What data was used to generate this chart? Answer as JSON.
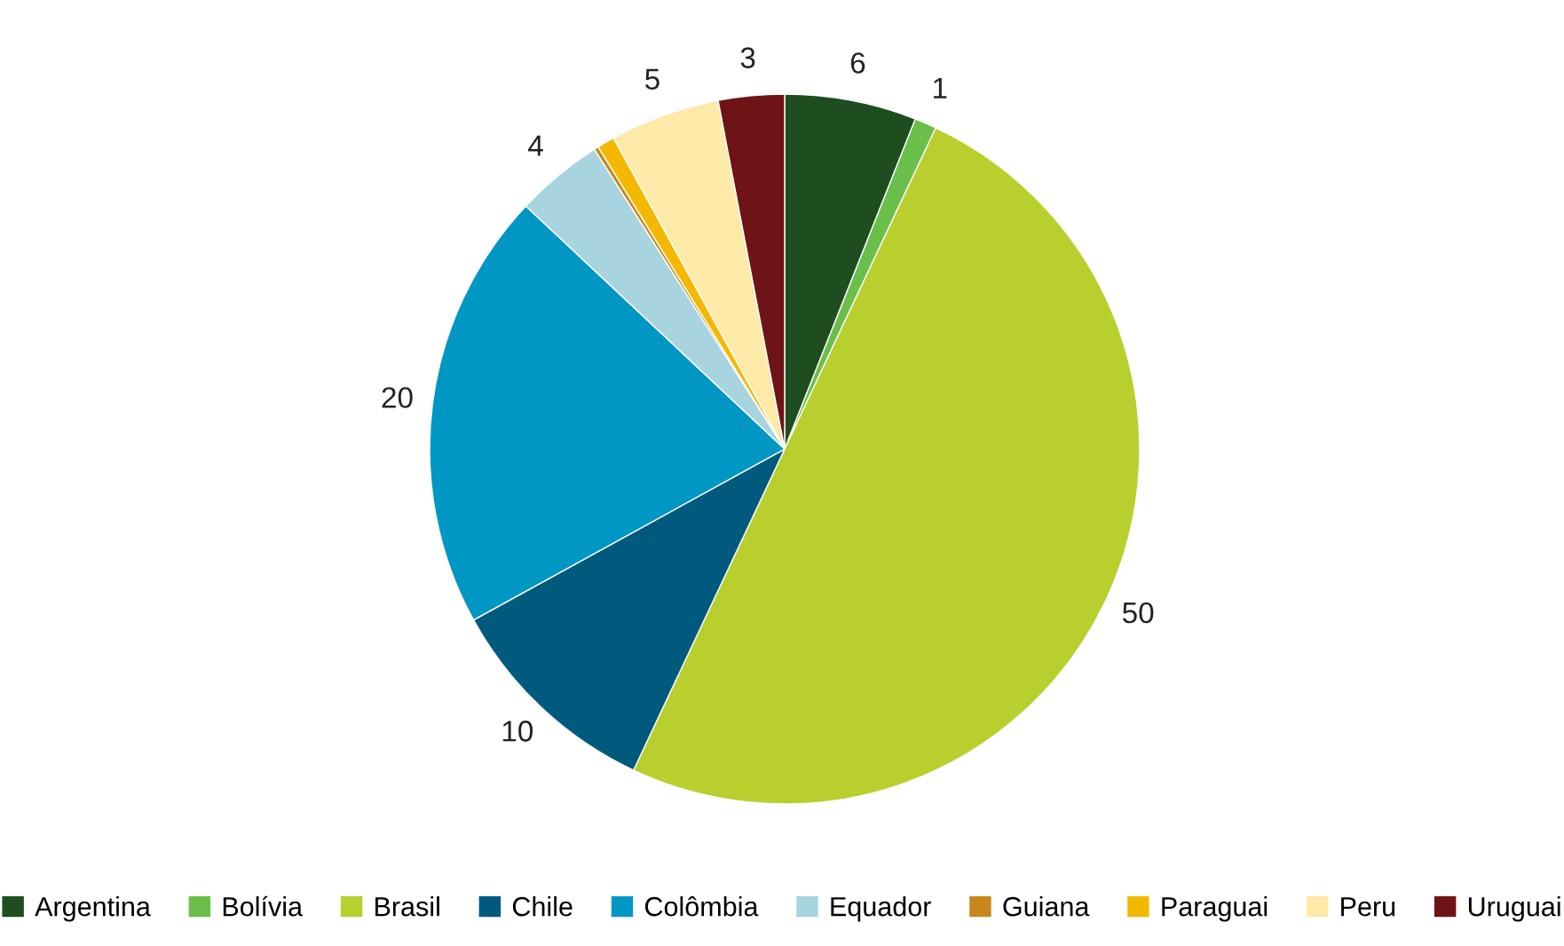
{
  "chart_data": {
    "type": "pie",
    "categories": [
      "Argentina",
      "Bolívia",
      "Brasil",
      "Chile",
      "Colômbia",
      "Equador",
      "Guiana",
      "Paraguai",
      "Peru",
      "Uruguai"
    ],
    "values": [
      6,
      1,
      50,
      10,
      20,
      4,
      0.2,
      0.8,
      5,
      3
    ],
    "value_labels": [
      "6",
      "1",
      "50",
      "10",
      "20",
      "4",
      null,
      null,
      "5",
      "3"
    ],
    "colors": [
      "#1e4d20",
      "#6abf4b",
      "#b8cf2e",
      "#005a7e",
      "#0097c4",
      "#a8d4e0",
      "#c8871a",
      "#f5b800",
      "#fdeaa8",
      "#6e1416"
    ],
    "legend": "bottom"
  }
}
